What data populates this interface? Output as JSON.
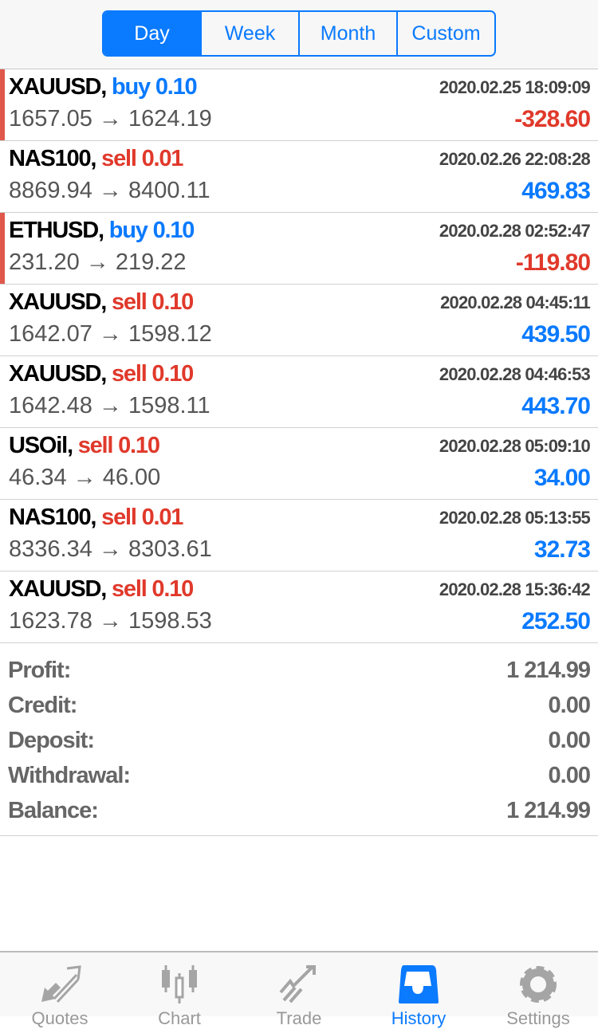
{
  "period_tabs": [
    {
      "label": "Day",
      "active": true
    },
    {
      "label": "Week"
    },
    {
      "label": "Month"
    },
    {
      "label": "Custom"
    }
  ],
  "deals": [
    {
      "symbol": "XAUUSD,",
      "side": "buy",
      "volume": "0.10",
      "open": "1657.05",
      "close": "1624.19",
      "time": "2020.02.25 18:09:09",
      "profit": "-328.60"
    },
    {
      "symbol": "NAS100,",
      "side": "sell",
      "volume": "0.01",
      "open": "8869.94",
      "close": "8400.11",
      "time": "2020.02.26 22:08:28",
      "profit": "469.83"
    },
    {
      "symbol": "ETHUSD,",
      "side": "buy",
      "volume": "0.10",
      "open": "231.20",
      "close": "219.22",
      "time": "2020.02.28 02:52:47",
      "profit": "-119.80"
    },
    {
      "symbol": "XAUUSD,",
      "side": "sell",
      "volume": "0.10",
      "open": "1642.07",
      "close": "1598.12",
      "time": "2020.02.28 04:45:11",
      "profit": "439.50"
    },
    {
      "symbol": "XAUUSD,",
      "side": "sell",
      "volume": "0.10",
      "open": "1642.48",
      "close": "1598.11",
      "time": "2020.02.28 04:46:53",
      "profit": "443.70"
    },
    {
      "symbol": "USOil,",
      "side": "sell",
      "volume": "0.10",
      "open": "46.34",
      "close": "46.00",
      "time": "2020.02.28 05:09:10",
      "profit": "34.00"
    },
    {
      "symbol": "NAS100,",
      "side": "sell",
      "volume": "0.01",
      "open": "8336.34",
      "close": "8303.61",
      "time": "2020.02.28 05:13:55",
      "profit": "32.73"
    },
    {
      "symbol": "XAUUSD,",
      "side": "sell",
      "volume": "0.10",
      "open": "1623.78",
      "close": "1598.53",
      "time": "2020.02.28 15:36:42",
      "profit": "252.50"
    }
  ],
  "arrow": "→",
  "summary": [
    {
      "label": "Profit:",
      "value": "1 214.99"
    },
    {
      "label": "Credit:",
      "value": "0.00"
    },
    {
      "label": "Deposit:",
      "value": "0.00"
    },
    {
      "label": "Withdrawal:",
      "value": "0.00"
    },
    {
      "label": "Balance:",
      "value": "1 214.99"
    }
  ],
  "tabbar": [
    {
      "label": "Quotes",
      "icon": "quotes-arrows-icon"
    },
    {
      "label": "Chart",
      "icon": "candlestick-icon"
    },
    {
      "label": "Trade",
      "icon": "trade-trend-icon"
    },
    {
      "label": "History",
      "icon": "inbox-tray-icon",
      "active": true
    },
    {
      "label": "Settings",
      "icon": "gear-icon"
    }
  ],
  "colors": {
    "accent": "#0a7aff",
    "loss": "#e0392b",
    "inactive": "#999999"
  }
}
